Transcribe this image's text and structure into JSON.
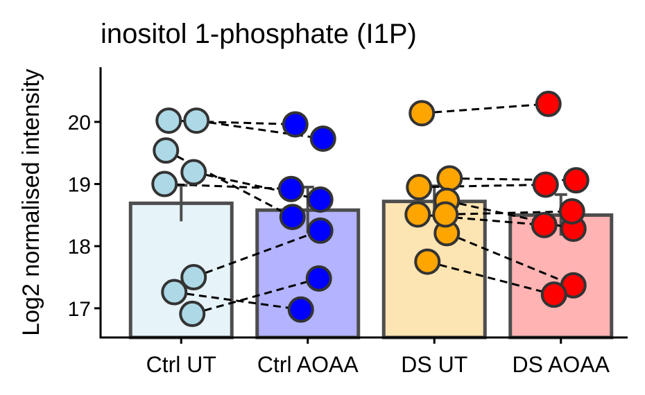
{
  "chart_data": {
    "type": "bar",
    "title": "inositol 1-phosphate (I1P)",
    "y_label": "Log2 normalised intensity",
    "categories": [
      "Ctrl UT",
      "Ctrl AOAA",
      "DS UT",
      "DS AOAA"
    ],
    "values": [
      18.69,
      18.58,
      18.72,
      18.5
    ],
    "errors": [
      0.29,
      0.37,
      0.25,
      0.33
    ],
    "bar_colors": [
      "#e6f3f9",
      "#b3b3ff",
      "#fde4b3",
      "#ffb3b3"
    ],
    "point_colors": [
      "#add8e6",
      "#0000ff",
      "#ffa500",
      "#ff0000"
    ],
    "points": [
      [
        20.02,
        20.02,
        19.54,
        19.19,
        19.0,
        17.5,
        17.26,
        16.91
      ],
      [
        19.96,
        19.73,
        18.47,
        18.75,
        18.92,
        18.25,
        16.98,
        17.48
      ],
      [
        20.14,
        19.09,
        18.95,
        18.73,
        18.51,
        18.21,
        17.75,
        18.51
      ],
      [
        20.29,
        19.06,
        18.99,
        18.28,
        18.34,
        17.37,
        17.22,
        18.56
      ]
    ],
    "ylim": [
      16.53,
      20.88
    ],
    "yticks": [
      17,
      18,
      19,
      20
    ]
  }
}
